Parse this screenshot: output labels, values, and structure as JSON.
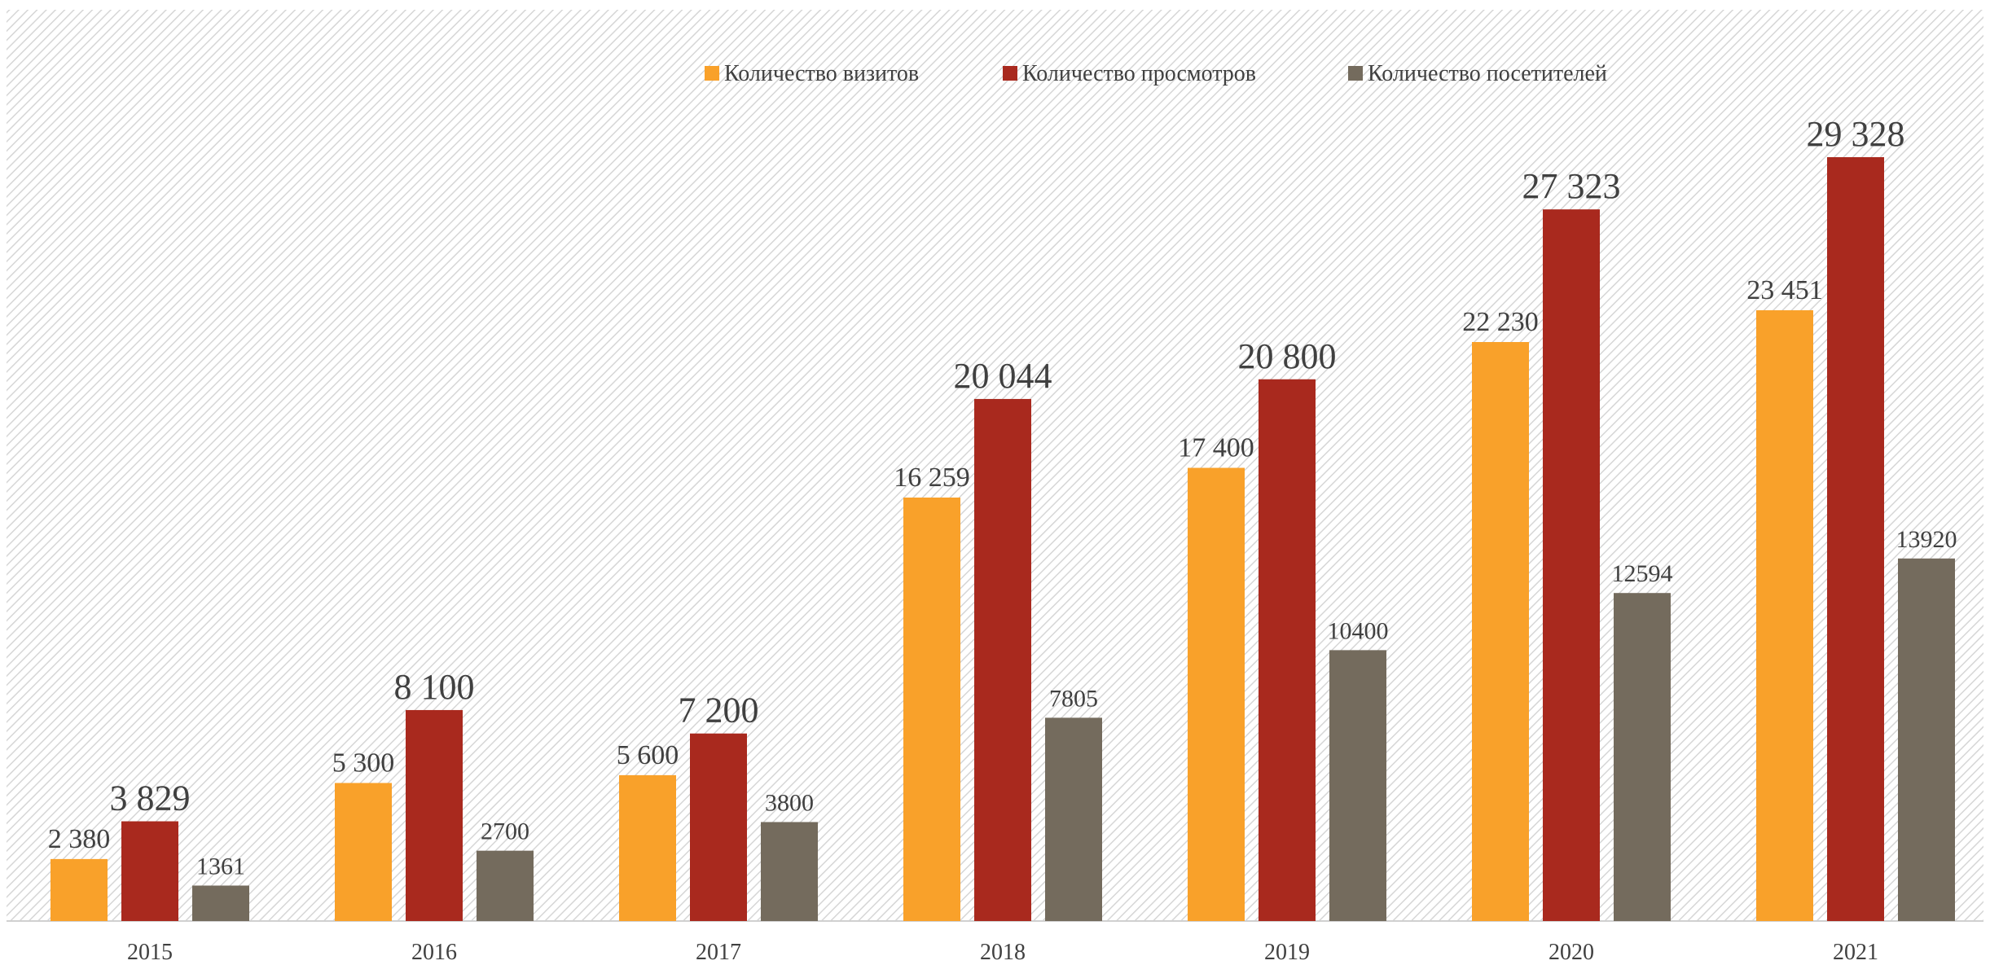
{
  "chart_data": {
    "type": "bar",
    "categories": [
      "2015",
      "2016",
      "2017",
      "2018",
      "2019",
      "2020",
      "2021"
    ],
    "series": [
      {
        "name": "Количество визитов",
        "color": "#f9a12a",
        "values": [
          2380,
          5300,
          5600,
          16259,
          17400,
          22230,
          23451
        ],
        "value_labels": [
          "2 380",
          "5 300",
          "5 600",
          "16 259",
          "17 400",
          "22 230",
          "23 451"
        ]
      },
      {
        "name": "Количество просмотров",
        "color": "#a9291e",
        "values": [
          3829,
          8100,
          7200,
          20044,
          20800,
          27323,
          29328
        ],
        "value_labels": [
          "3 829",
          "8 100",
          "7 200",
          "20 044",
          "20 800",
          "27 323",
          "29 328"
        ]
      },
      {
        "name": "Количество посетителей",
        "color": "#746b5d",
        "values": [
          1361,
          2700,
          3800,
          7805,
          10400,
          12594,
          13920
        ]
      }
    ],
    "legend": "top"
  }
}
